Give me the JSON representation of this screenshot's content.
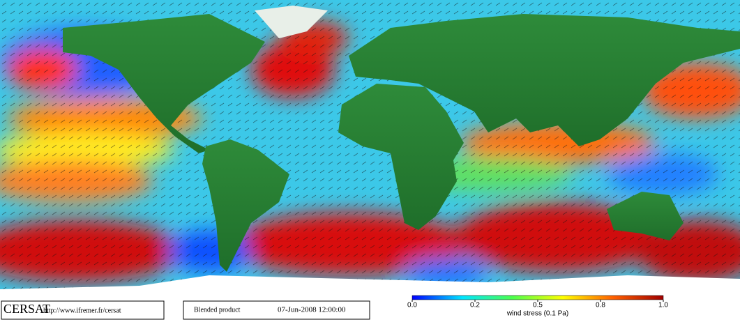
{
  "footer": {
    "logo": "CERSAT",
    "url": "http://www.ifremer.fr/cersat",
    "product": "Blended product",
    "date": "07-Jun-2008 12:00:00"
  },
  "colorbar": {
    "label": "wind stress (0.1 Pa)",
    "colors": [
      "#0000ff",
      "#00e5ff",
      "#4cff4c",
      "#ffff00",
      "#ff6000",
      "#a00000"
    ],
    "ticks": [
      {
        "value": 0,
        "label": "0.0"
      },
      {
        "value": 0.2,
        "label": "0.2"
      },
      {
        "value": 0.5,
        "label": "0.5"
      },
      {
        "value": 0.8,
        "label": "0.8"
      },
      {
        "value": 1,
        "label": "1.0"
      }
    ]
  }
}
